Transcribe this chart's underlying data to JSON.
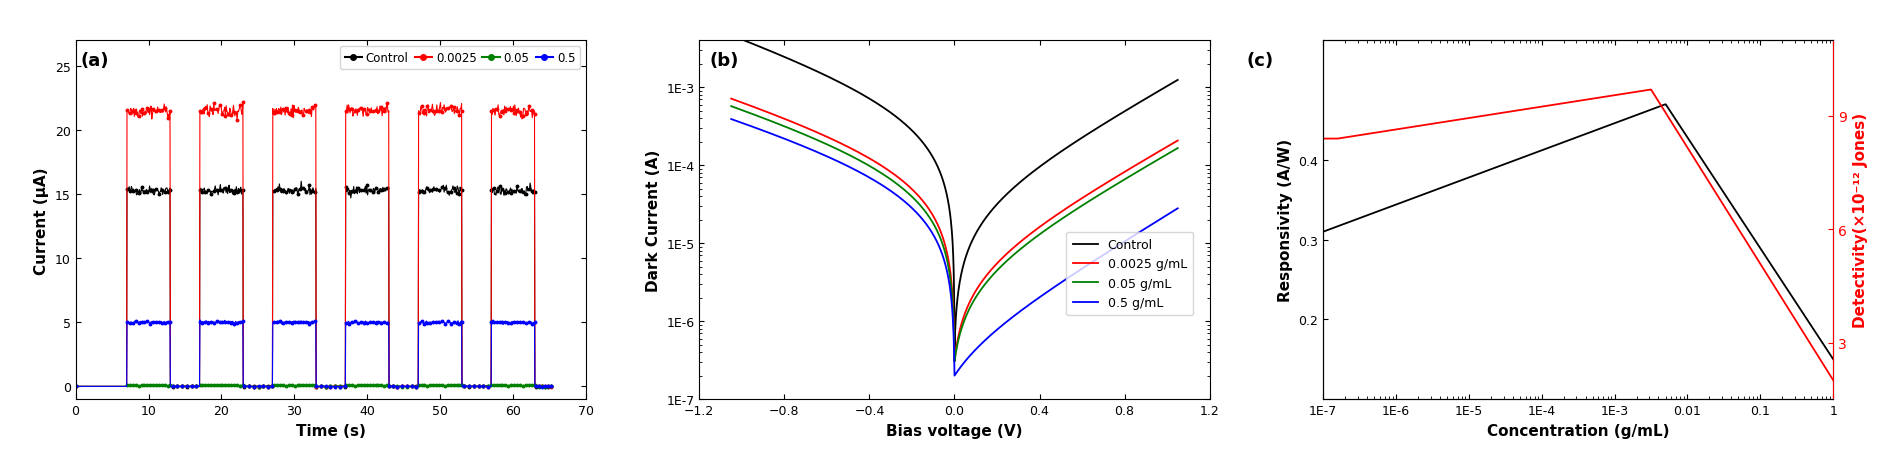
{
  "panel_a": {
    "xlabel": "Time (s)",
    "ylabel": "Current (μA)",
    "xlim": [
      0,
      70
    ],
    "ylim": [
      -1,
      27
    ],
    "yticks": [
      0.0,
      5.0,
      10.0,
      15.0,
      20.0,
      25.0
    ],
    "xticks": [
      0,
      10,
      20,
      30,
      40,
      50,
      60,
      70
    ],
    "legend_labels": [
      "Control",
      "0.0025",
      "0.05",
      "0.5"
    ],
    "colors": [
      "black",
      "red",
      "green",
      "blue"
    ],
    "on_levels": [
      15.3,
      21.5,
      0.08,
      5.0
    ],
    "off_levels": [
      0.0,
      0.0,
      0.0,
      0.0
    ],
    "pulse_on_times": [
      7,
      17,
      27,
      37,
      47,
      57
    ],
    "pulse_off_times": [
      13,
      23,
      33,
      43,
      53,
      63
    ]
  },
  "panel_b": {
    "xlabel": "Bias voltage (V)",
    "ylabel": "Dark Current (A)",
    "xlim": [
      -1.1,
      1.1
    ],
    "legend_labels": [
      "Control",
      "0.0025 g/mL",
      "0.05 g/mL",
      "0.5 g/mL"
    ],
    "colors": [
      "black",
      "red",
      "green",
      "blue"
    ]
  },
  "panel_c": {
    "xlabel": "Concentration (g/mL)",
    "ylabel_left": "Responsivity (A/W)",
    "ylabel_right": "Detectivity(×10⁻¹² Jones)",
    "color_left": "black",
    "color_right": "red",
    "yticks_left": [
      0.2,
      0.3,
      0.4
    ],
    "yticks_right": [
      3,
      6,
      9
    ],
    "xtick_labels": [
      "1E-7",
      "1E-6",
      "1E-5",
      "1E-4",
      "1E-3",
      "0.01",
      "0.1",
      "1"
    ]
  }
}
